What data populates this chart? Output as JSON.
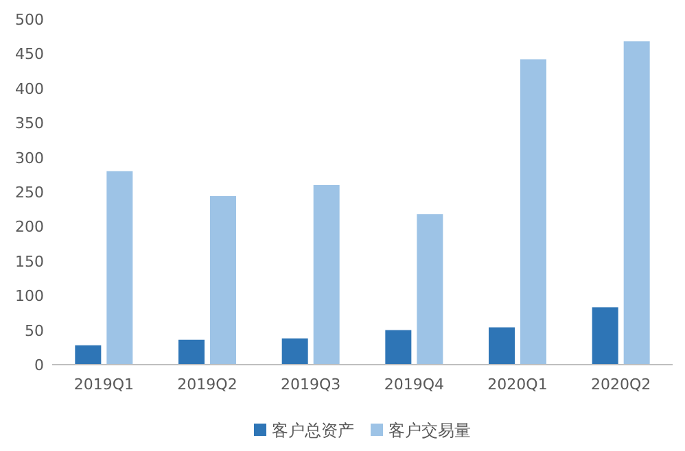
{
  "chart_data": {
    "type": "bar",
    "categories": [
      "2019Q1",
      "2019Q2",
      "2019Q3",
      "2019Q4",
      "2020Q1",
      "2020Q2"
    ],
    "series": [
      {
        "name": "客户总资产",
        "color": "#2e75b6",
        "values": [
          28,
          36,
          38,
          50,
          54,
          83
        ]
      },
      {
        "name": "客户交易量",
        "color": "#9dc3e6",
        "values": [
          280,
          244,
          260,
          218,
          442,
          468
        ]
      }
    ],
    "ylim": [
      0,
      500
    ],
    "yticks": [
      0,
      50,
      100,
      150,
      200,
      250,
      300,
      350,
      400,
      450,
      500
    ],
    "grid": false,
    "legend": "bottom"
  }
}
